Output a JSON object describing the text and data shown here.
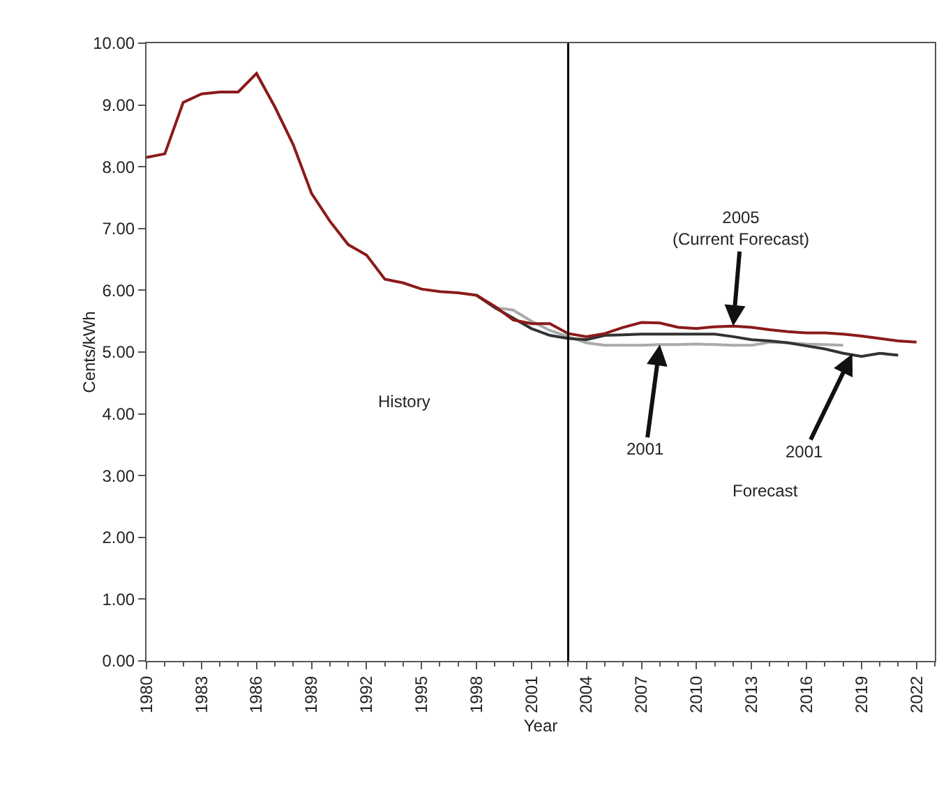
{
  "chart_data": {
    "type": "line",
    "xlabel": "Year",
    "ylabel": "Cents/kWh",
    "xlim": [
      1980,
      2023
    ],
    "xticks": [
      1980,
      1983,
      1986,
      1989,
      1992,
      1995,
      1998,
      2001,
      2004,
      2007,
      2010,
      2013,
      2016,
      2019,
      2022
    ],
    "ylim": [
      0,
      10
    ],
    "yticks": [
      {
        "value": 0,
        "label": "0.00"
      },
      {
        "value": 1,
        "label": "1.00"
      },
      {
        "value": 2,
        "label": "2.00"
      },
      {
        "value": 3,
        "label": "3.00"
      },
      {
        "value": 4,
        "label": "4.00"
      },
      {
        "value": 5,
        "label": "5.00"
      },
      {
        "value": 6,
        "label": "6.00"
      },
      {
        "value": 7,
        "label": "7.00"
      },
      {
        "value": 8,
        "label": "8.00"
      },
      {
        "value": 9,
        "label": "9.00"
      },
      {
        "value": 10,
        "label": "10.00"
      }
    ],
    "marker": "none",
    "line_style": "solid",
    "series": [
      {
        "color": "#aaaaaa",
        "x": [
          1998,
          1999,
          2000,
          2001,
          2002,
          2003,
          2004,
          2005,
          2006,
          2007,
          2008,
          2009,
          2010,
          2011,
          2012,
          2013,
          2014,
          2015,
          2016,
          2017,
          2018
        ],
        "values": [
          5.92,
          5.72,
          5.68,
          5.5,
          5.35,
          5.25,
          5.15,
          5.11,
          5.11,
          5.11,
          5.12,
          5.12,
          5.13,
          5.12,
          5.11,
          5.11,
          5.16,
          5.15,
          5.13,
          5.12,
          5.11
        ]
      },
      {
        "color": "#333333",
        "x": [
          1998,
          1999,
          2000,
          2001,
          2002,
          2003,
          2004,
          2005,
          2006,
          2007,
          2008,
          2009,
          2010,
          2011,
          2012,
          2013,
          2014,
          2015,
          2016,
          2017,
          2018,
          2019,
          2020,
          2021
        ],
        "values": [
          5.92,
          5.72,
          5.55,
          5.38,
          5.27,
          5.22,
          5.2,
          5.27,
          5.28,
          5.29,
          5.29,
          5.29,
          5.29,
          5.29,
          5.25,
          5.2,
          5.18,
          5.15,
          5.1,
          5.05,
          4.98,
          4.93,
          4.98,
          4.95
        ]
      },
      {
        "color": "#8b1a1a",
        "x": [
          1980,
          1981,
          1982,
          1983,
          1984,
          1985,
          1986,
          1987,
          1988,
          1989,
          1990,
          1991,
          1992,
          1993,
          1994,
          1995,
          1996,
          1997,
          1998,
          1999,
          2000,
          2001,
          2002,
          2003,
          2004,
          2005,
          2006,
          2007,
          2008,
          2009,
          2010,
          2011,
          2012,
          2013,
          2014,
          2015,
          2016,
          2017,
          2018,
          2019,
          2020,
          2021,
          2022
        ],
        "values": [
          8.15,
          8.21,
          9.04,
          9.18,
          9.21,
          9.21,
          9.51,
          8.97,
          8.36,
          7.57,
          7.12,
          6.74,
          6.57,
          6.18,
          6.12,
          6.02,
          5.98,
          5.96,
          5.92,
          5.74,
          5.52,
          5.46,
          5.46,
          5.3,
          5.25,
          5.3,
          5.4,
          5.48,
          5.47,
          5.4,
          5.38,
          5.41,
          5.42,
          5.4,
          5.36,
          5.33,
          5.31,
          5.31,
          5.29,
          5.26,
          5.22,
          5.18,
          5.16
        ]
      }
    ],
    "ref_lines": [
      {
        "axis": "x",
        "value": 2003,
        "color": "#000000"
      }
    ],
    "annotations": [
      "History",
      "Forecast",
      {
        "text": "2005\n(Current Forecast)",
        "x": 2012,
        "y": 5.42
      },
      {
        "text": "2001",
        "x": 2008,
        "y": 5.12
      },
      {
        "text": "2001",
        "x": 2018.5,
        "y": 4.97
      }
    ]
  }
}
